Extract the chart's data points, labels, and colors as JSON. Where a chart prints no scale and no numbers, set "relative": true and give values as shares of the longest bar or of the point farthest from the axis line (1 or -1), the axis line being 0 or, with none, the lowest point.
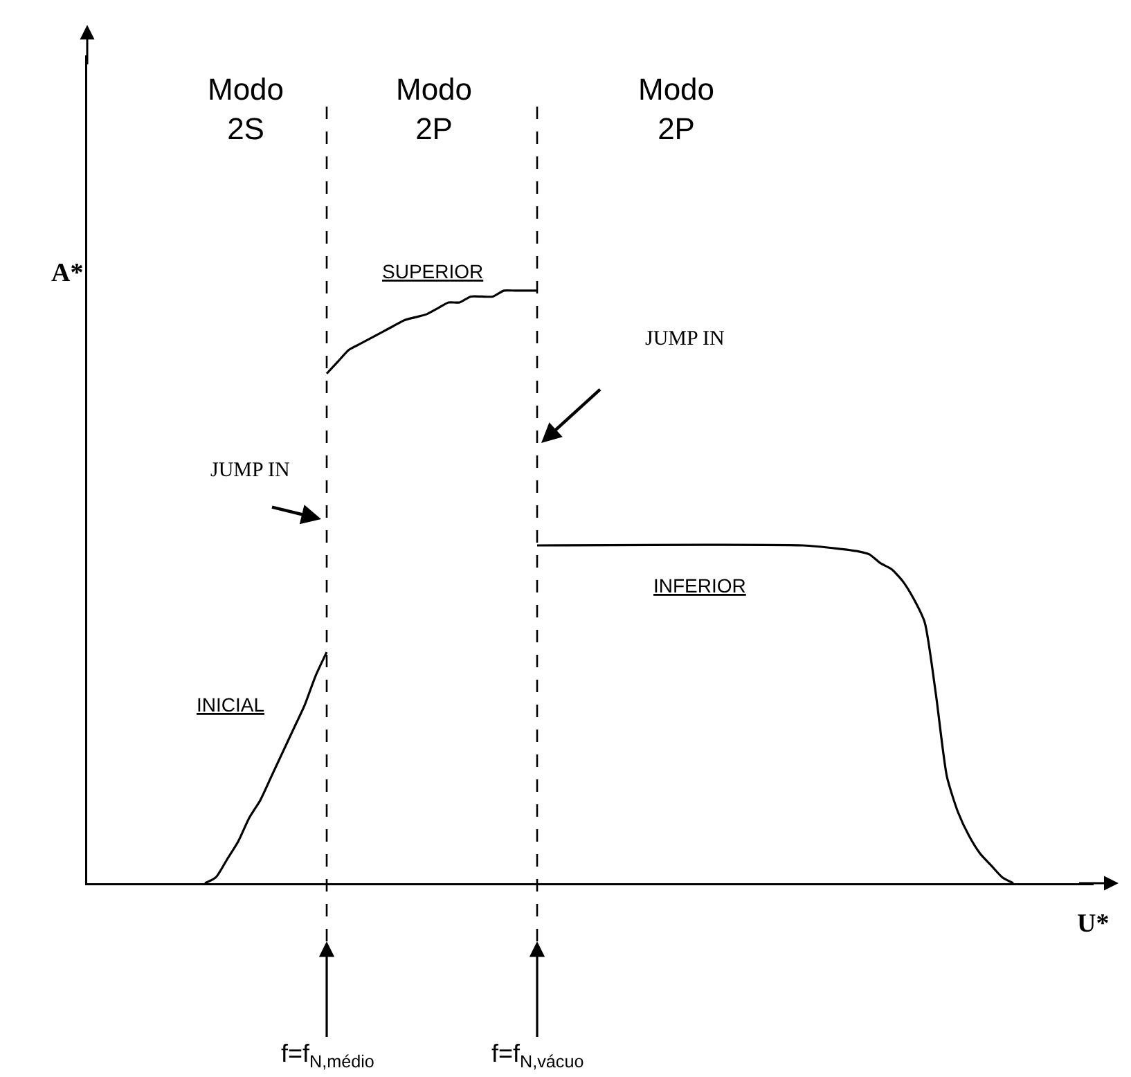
{
  "chart_data": {
    "type": "line",
    "relative": true,
    "xlabel": "U*",
    "ylabel": "A*",
    "categories": [
      null,
      null,
      null,
      null,
      null,
      null,
      null,
      null,
      null,
      null,
      null,
      null,
      null,
      null,
      null,
      null,
      null,
      null,
      null,
      null,
      null,
      null,
      null,
      null,
      null,
      null,
      null,
      null,
      null,
      null,
      null,
      null,
      null,
      null,
      null,
      null,
      null,
      null,
      null,
      null,
      null,
      null,
      null,
      null,
      null,
      null,
      null,
      null,
      null,
      null,
      null,
      null,
      null,
      null,
      null,
      null,
      null,
      null,
      null,
      null,
      null,
      null,
      null,
      null,
      null,
      null,
      null,
      null,
      null,
      null,
      null,
      null,
      null,
      null,
      null,
      null,
      null,
      null,
      null,
      null,
      null,
      null,
      null,
      null,
      null,
      null,
      null,
      null,
      null,
      null,
      null
    ],
    "series": [
      {
        "color": "#000000",
        "values": [
          null,
          null,
          null,
          null,
          null,
          null,
          null,
          null,
          null,
          null,
          0,
          0.01,
          0.04,
          0.07,
          0.11,
          0.14,
          0.18,
          0.22,
          0.26,
          0.3,
          0.35,
          0.39,
          null,
          null,
          null,
          null,
          null,
          null,
          null,
          null,
          null,
          null,
          null,
          null,
          null,
          null,
          null,
          null,
          null,
          null,
          null,
          null,
          null,
          null,
          null,
          null,
          null,
          null,
          null,
          null,
          null,
          null,
          null,
          null,
          null,
          null,
          null,
          null,
          null,
          null,
          null,
          null,
          null,
          null,
          null,
          null,
          null,
          null,
          null,
          null,
          null,
          null,
          null,
          null,
          null,
          null,
          null,
          null,
          null,
          null,
          null,
          null,
          null,
          null,
          null,
          null,
          null,
          null,
          null,
          null,
          null
        ]
      },
      {
        "color": "#000000",
        "values": [
          null,
          null,
          null,
          null,
          null,
          null,
          null,
          null,
          null,
          null,
          null,
          null,
          null,
          null,
          null,
          null,
          null,
          null,
          null,
          null,
          null,
          0.86,
          0.88,
          0.9,
          0.91,
          0.92,
          0.93,
          0.94,
          0.95,
          0.955,
          0.96,
          0.97,
          0.98,
          0.98,
          0.99,
          0.99,
          0.99,
          1.0,
          1.0,
          1.0,
          1.0,
          null,
          null,
          null,
          null,
          null,
          null,
          null,
          null,
          null,
          null,
          null,
          null,
          null,
          null,
          null,
          null,
          null,
          null,
          null,
          null,
          null,
          null,
          null,
          null,
          null,
          null,
          null,
          null,
          null,
          null,
          null,
          null,
          null,
          null,
          null,
          null,
          null,
          null,
          null,
          null,
          null,
          null,
          null,
          null,
          null,
          null,
          null,
          null,
          null,
          null
        ]
      },
      {
        "color": "#000000",
        "values": [
          null,
          null,
          null,
          null,
          null,
          null,
          null,
          null,
          null,
          null,
          null,
          null,
          null,
          null,
          null,
          null,
          null,
          null,
          null,
          null,
          null,
          null,
          null,
          null,
          null,
          null,
          null,
          null,
          null,
          null,
          null,
          null,
          null,
          null,
          null,
          null,
          null,
          null,
          null,
          null,
          0.57,
          null,
          null,
          null,
          null,
          null,
          null,
          null,
          null,
          null,
          null,
          null,
          null,
          null,
          null,
          null,
          null,
          null,
          null,
          null,
          null,
          null,
          null,
          null,
          0.57,
          null,
          null,
          0.565,
          null,
          0.56,
          0.555,
          0.54,
          0.53,
          0.51,
          0.48,
          0.44,
          0.32,
          0.18,
          0.12,
          0.08,
          0.05,
          0.03,
          0.01,
          0,
          null,
          null,
          null,
          null,
          null,
          null,
          null
        ]
      }
    ],
    "line_style": "solid",
    "marker": "none",
    "annotations": [
      "Modo\n2S",
      "Modo\n2P",
      "Modo\n2P",
      "SUPERIOR",
      "JUMP IN",
      "JUMP IN",
      "INFERIOR",
      "INICIAL",
      "f=f$_{N,médio}$",
      "f=f$_{N,vácuo}$"
    ]
  }
}
